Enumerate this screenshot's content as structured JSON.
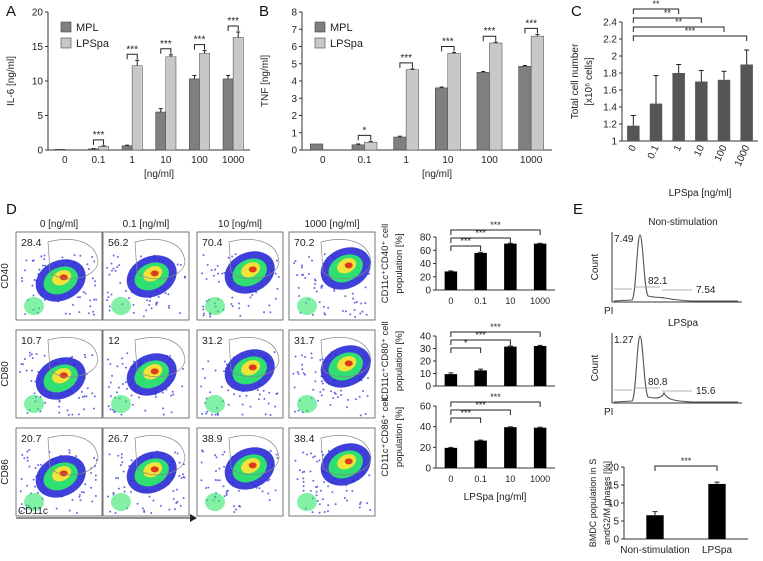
{
  "panel_letters": {
    "a": "A",
    "b": "B",
    "c": "C",
    "d": "D",
    "e": "E"
  },
  "colors": {
    "mpl": "#7f7f7f",
    "lps": "#c8c8c8",
    "dark": "#555555",
    "black": "#000000",
    "flow_low": "#2a2ad6",
    "flow_mid": "#2ee86b",
    "flow_high": "#f2e23a",
    "flow_peak": "#e03a1e"
  },
  "chart_data": [
    {
      "id": "A",
      "type": "bar",
      "ylabel": "IL-6 [ng/ml]",
      "xlabel": "[ng/ml]",
      "ylim": [
        0,
        20
      ],
      "yticks": [
        "0",
        "5",
        "10",
        "15",
        "20"
      ],
      "categories": [
        "0",
        "0.1",
        "1",
        "10",
        "100",
        "1000"
      ],
      "legend": [
        "MPL",
        "LPSpa"
      ],
      "series": [
        {
          "name": "MPL",
          "values": [
            0.1,
            0.15,
            0.6,
            5.5,
            10.3,
            10.3
          ],
          "errors": [
            0,
            0.05,
            0.1,
            0.5,
            0.5,
            0.5
          ]
        },
        {
          "name": "LPSpa",
          "values": [
            0,
            0.5,
            12.2,
            13.5,
            14.0,
            16.3
          ],
          "errors": [
            0,
            0.1,
            0.8,
            0.3,
            0.4,
            0.8
          ]
        }
      ],
      "significance": [
        {
          "category": "0.1",
          "label": "***"
        },
        {
          "category": "1",
          "label": "***"
        },
        {
          "category": "10",
          "label": "***"
        },
        {
          "category": "100",
          "label": "***"
        },
        {
          "category": "1000",
          "label": "***"
        }
      ]
    },
    {
      "id": "B",
      "type": "bar",
      "ylabel": "TNF [ng/ml]",
      "xlabel": "[ng/ml]",
      "ylim": [
        0,
        8
      ],
      "yticks": [
        "0",
        "1",
        "2",
        "3",
        "4",
        "5",
        "6",
        "7",
        "8"
      ],
      "categories": [
        "0",
        "0.1",
        "1",
        "10",
        "100",
        "1000"
      ],
      "legend": [
        "MPL",
        "LPSpa"
      ],
      "series": [
        {
          "name": "MPL",
          "values": [
            0.35,
            0.3,
            0.75,
            3.6,
            4.5,
            4.85
          ],
          "errors": [
            0,
            0.05,
            0.05,
            0.05,
            0.05,
            0.05
          ]
        },
        {
          "name": "LPSpa",
          "values": [
            0,
            0.45,
            4.65,
            5.6,
            6.2,
            6.6
          ],
          "errors": [
            0,
            0.05,
            0.05,
            0.05,
            0.05,
            0.1
          ]
        }
      ],
      "significance": [
        {
          "category": "0.1",
          "label": "*"
        },
        {
          "category": "1",
          "label": "***"
        },
        {
          "category": "10",
          "label": "***"
        },
        {
          "category": "100",
          "label": "***"
        },
        {
          "category": "1000",
          "label": "***"
        }
      ]
    },
    {
      "id": "C",
      "type": "bar",
      "ylabel": "Total cell number",
      "ylabel2": "[x10⁶ cells]",
      "xlabel": "LPSpa [ng/ml]",
      "ylim": [
        1,
        2.4
      ],
      "yticks": [
        "1",
        "1.2",
        "1.4",
        "1.6",
        "1.8",
        "2",
        "2.2",
        "2.4"
      ],
      "categories": [
        "0",
        "0.1",
        "1",
        "10",
        "100",
        "1000"
      ],
      "values": [
        1.18,
        1.44,
        1.8,
        1.7,
        1.72,
        1.9
      ],
      "errors": [
        0.12,
        0.33,
        0.1,
        0.13,
        0.1,
        0.17
      ],
      "significance": [
        {
          "from": "0",
          "to": "1",
          "label": "**"
        },
        {
          "from": "0",
          "to": "10",
          "label": "**"
        },
        {
          "from": "0",
          "to": "100",
          "label": "**"
        },
        {
          "from": "0",
          "to": "1000",
          "label": "***"
        }
      ]
    },
    {
      "id": "D1",
      "type": "bar",
      "ylabel": "CD11c⁺CD40⁺ cell",
      "ylabel2": "population [%]",
      "ylim": [
        0,
        80
      ],
      "yticks": [
        "0",
        "20",
        "40",
        "60",
        "80"
      ],
      "categories": [
        "0",
        "0.1",
        "10",
        "1000"
      ],
      "values": [
        28,
        56,
        70,
        70
      ],
      "errors": [
        0.8,
        1,
        0.5,
        0.5
      ],
      "significance": [
        {
          "from": "0",
          "to": "0.1",
          "label": "***"
        },
        {
          "from": "0",
          "to": "10",
          "label": "***"
        },
        {
          "from": "0",
          "to": "1000",
          "label": "***"
        }
      ]
    },
    {
      "id": "D2",
      "type": "bar",
      "ylabel": "CD11c⁺CD80⁺ cell",
      "ylabel2": "population [%]",
      "ylim": [
        0,
        40
      ],
      "yticks": [
        "0",
        "10",
        "20",
        "30",
        "40"
      ],
      "categories": [
        "0",
        "0.1",
        "10",
        "1000"
      ],
      "values": [
        9.5,
        12.5,
        31.5,
        32
      ],
      "errors": [
        1,
        1,
        0.5,
        0.5
      ],
      "significance": [
        {
          "from": "0",
          "to": "0.1",
          "label": "*"
        },
        {
          "from": "0",
          "to": "10",
          "label": "***"
        },
        {
          "from": "0",
          "to": "1000",
          "label": "***"
        }
      ]
    },
    {
      "id": "D3",
      "type": "bar",
      "ylabel": "CD11c⁺CD86⁺ cell",
      "ylabel2": "population [%]",
      "xlabel": "LPSpa [ng/ml]",
      "ylim": [
        0,
        60
      ],
      "yticks": [
        "0",
        "20",
        "40",
        "60"
      ],
      "categories": [
        "0",
        "0.1",
        "10",
        "1000"
      ],
      "values": [
        19.5,
        26.5,
        39.5,
        39
      ],
      "errors": [
        0.5,
        0.5,
        0.3,
        0.5
      ],
      "significance": [
        {
          "from": "0",
          "to": "0.1",
          "label": "***"
        },
        {
          "from": "0",
          "to": "10",
          "label": "***"
        },
        {
          "from": "0",
          "to": "1000",
          "label": "***"
        }
      ]
    },
    {
      "id": "E3",
      "type": "bar",
      "ylabel": "BMDC population in S",
      "ylabel2": "andG2/M phases [%]",
      "ylim": [
        0,
        20
      ],
      "yticks": [
        "0",
        "5",
        "10",
        "15",
        "20"
      ],
      "categories": [
        "Non-stimulation",
        "LPSpa"
      ],
      "values": [
        6.6,
        15.3
      ],
      "errors": [
        1,
        0.5
      ],
      "significance": [
        {
          "from": "Non-stimulation",
          "to": "LPSpa",
          "label": "***"
        }
      ]
    }
  ],
  "flow": {
    "columns": [
      "0 [ng/ml]",
      "0.1 [ng/ml]",
      "10 [ng/ml]",
      "1000 [ng/ml]"
    ],
    "rows": [
      {
        "marker": "CD40",
        "values": [
          "28.4",
          "56.2",
          "70.4",
          "70.2"
        ]
      },
      {
        "marker": "CD80",
        "values": [
          "10.7",
          "12",
          "31.2",
          "31.7"
        ]
      },
      {
        "marker": "CD86",
        "values": [
          "20.7",
          "26.7",
          "38.9",
          "38.4"
        ]
      }
    ],
    "xaxis": "CD11c"
  },
  "histograms": [
    {
      "title": "Non-stimulation",
      "ylabel": "Count",
      "xlabel": "PI",
      "g1": "7.49",
      "s": "82.1",
      "g2m": "7.54"
    },
    {
      "title": "LPSpa",
      "ylabel": "Count",
      "xlabel": "PI",
      "g1": "1.27",
      "s": "80.8",
      "g2m": "15.6"
    }
  ]
}
